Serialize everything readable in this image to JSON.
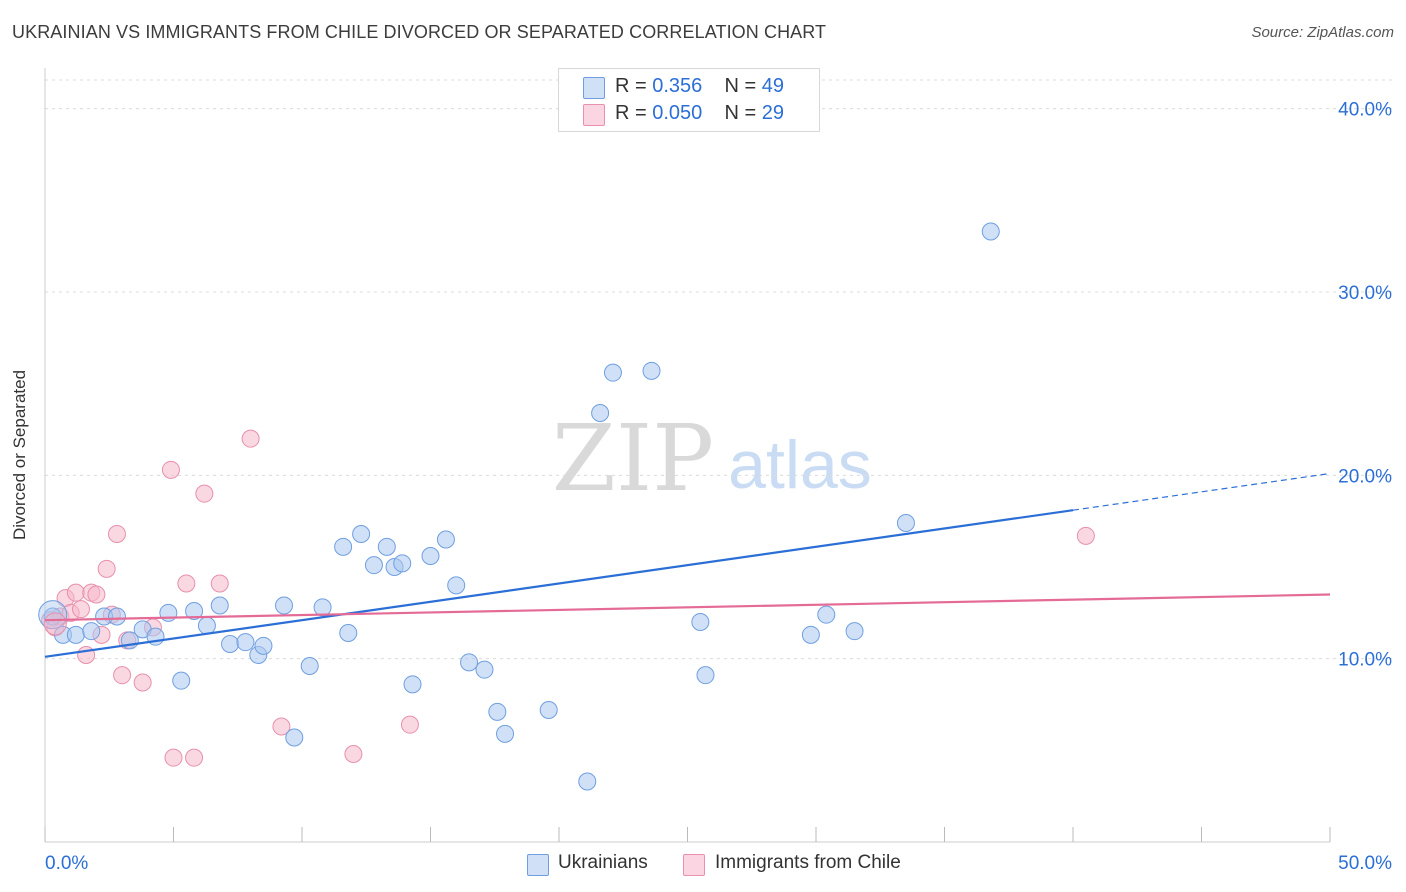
{
  "title": "UKRAINIAN VS IMMIGRANTS FROM CHILE DIVORCED OR SEPARATED CORRELATION CHART",
  "source": "Source: ZipAtlas.com",
  "watermark": {
    "zip": "ZIP",
    "atlas": "atlas"
  },
  "legend": {
    "rows": [
      {
        "r_label": "R =",
        "r_value": "0.356",
        "n_label": "N =",
        "n_value": "49",
        "color": "#a9c8f0"
      },
      {
        "r_label": "R =",
        "r_value": "0.050",
        "n_label": "N =",
        "n_value": "29",
        "color": "#f6b8cb"
      }
    ]
  },
  "bottom_legend": [
    {
      "label": "Ukrainians",
      "color": "#a9c8f0"
    },
    {
      "label": "Immigrants from Chile",
      "color": "#f6b8cb"
    }
  ],
  "colors": {
    "blue_line": "#2b6fd6",
    "pink_line": "#e46b96",
    "blue_fill": "#a9c8f0",
    "blue_stroke": "#6f9fe0",
    "pink_fill": "#f6b8cb",
    "pink_stroke": "#e890ad",
    "tick_text": "#2b6fd6"
  },
  "chart_data": {
    "type": "scatter",
    "title": "UKRAINIAN VS IMMIGRANTS FROM CHILE DIVORCED OR SEPARATED CORRELATION CHART",
    "xlabel": "",
    "ylabel": "Divorced or Separated",
    "xlim": [
      0,
      50
    ],
    "ylim": [
      0,
      42
    ],
    "x_tick_labels": [
      "0.0%",
      "50.0%"
    ],
    "y_ticks": [
      10,
      20,
      30,
      40
    ],
    "y_tick_labels": [
      "10.0%",
      "20.0%",
      "30.0%",
      "40.0%"
    ],
    "grid": true,
    "series": [
      {
        "name": "Ukrainians",
        "points": [
          [
            0.3,
            12.3
          ],
          [
            0.7,
            11.3
          ],
          [
            1.2,
            11.3
          ],
          [
            1.8,
            11.5
          ],
          [
            2.3,
            12.3
          ],
          [
            2.8,
            12.3
          ],
          [
            3.3,
            11.0
          ],
          [
            3.8,
            11.6
          ],
          [
            4.3,
            11.2
          ],
          [
            4.8,
            12.5
          ],
          [
            5.3,
            8.8
          ],
          [
            5.8,
            12.6
          ],
          [
            6.3,
            11.8
          ],
          [
            6.8,
            12.9
          ],
          [
            7.2,
            10.8
          ],
          [
            7.8,
            10.9
          ],
          [
            8.3,
            10.2
          ],
          [
            8.5,
            10.7
          ],
          [
            9.3,
            12.9
          ],
          [
            9.7,
            5.7
          ],
          [
            10.3,
            9.6
          ],
          [
            10.8,
            12.8
          ],
          [
            11.6,
            16.1
          ],
          [
            11.8,
            11.4
          ],
          [
            12.3,
            16.8
          ],
          [
            12.8,
            15.1
          ],
          [
            13.3,
            16.1
          ],
          [
            13.6,
            15.0
          ],
          [
            13.9,
            15.2
          ],
          [
            14.3,
            8.6
          ],
          [
            15.0,
            15.6
          ],
          [
            15.6,
            16.5
          ],
          [
            16.0,
            14.0
          ],
          [
            16.5,
            9.8
          ],
          [
            17.1,
            9.4
          ],
          [
            17.6,
            7.1
          ],
          [
            17.9,
            5.9
          ],
          [
            19.6,
            7.2
          ],
          [
            21.1,
            3.3
          ],
          [
            21.6,
            23.4
          ],
          [
            22.1,
            25.6
          ],
          [
            23.6,
            25.7
          ],
          [
            25.5,
            12.0
          ],
          [
            25.7,
            9.1
          ],
          [
            29.8,
            11.3
          ],
          [
            30.4,
            12.4
          ],
          [
            31.5,
            11.5
          ],
          [
            33.5,
            17.4
          ],
          [
            36.8,
            33.3
          ]
        ],
        "trend": {
          "x0": 0,
          "y0": 10.1,
          "x1": 40,
          "y1": 18.1,
          "dash_to_x": 50,
          "dash_to_y": 20.1
        }
      },
      {
        "name": "Immigrants from Chile",
        "points": [
          [
            0.2,
            12.1
          ],
          [
            0.4,
            11.7
          ],
          [
            0.6,
            12.3
          ],
          [
            0.8,
            13.3
          ],
          [
            1.0,
            12.5
          ],
          [
            1.2,
            13.6
          ],
          [
            1.4,
            12.7
          ],
          [
            1.6,
            10.2
          ],
          [
            1.8,
            13.6
          ],
          [
            2.0,
            13.5
          ],
          [
            2.2,
            11.3
          ],
          [
            2.4,
            14.9
          ],
          [
            2.6,
            12.4
          ],
          [
            2.8,
            16.8
          ],
          [
            3.0,
            9.1
          ],
          [
            3.2,
            11.0
          ],
          [
            3.8,
            8.7
          ],
          [
            4.2,
            11.7
          ],
          [
            4.9,
            20.3
          ],
          [
            5.0,
            4.6
          ],
          [
            5.5,
            14.1
          ],
          [
            5.8,
            4.6
          ],
          [
            6.2,
            19.0
          ],
          [
            6.8,
            14.1
          ],
          [
            8.0,
            22.0
          ],
          [
            9.2,
            6.3
          ],
          [
            12.0,
            4.8
          ],
          [
            14.2,
            6.4
          ],
          [
            40.5,
            16.7
          ]
        ],
        "trend": {
          "x0": 0,
          "y0": 12.1,
          "x1": 50,
          "y1": 13.5
        }
      }
    ]
  }
}
